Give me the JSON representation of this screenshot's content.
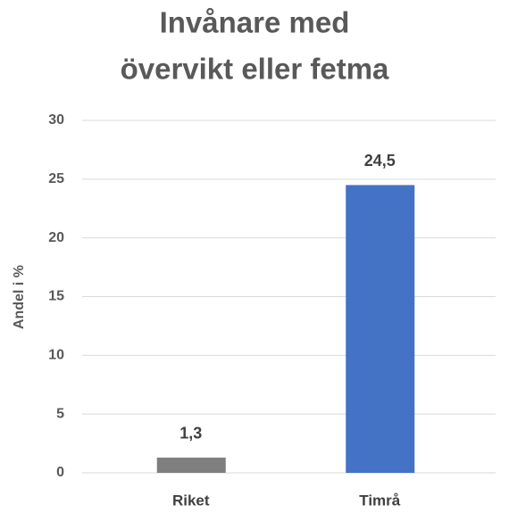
{
  "chart_data": {
    "type": "bar",
    "title": [
      "Invånare med",
      "övervikt eller fetma"
    ],
    "y_label": "Andel i %",
    "categories": [
      "Riket",
      "Timrå"
    ],
    "values": [
      1.3,
      24.5
    ],
    "value_labels": [
      "1,3",
      "24,5"
    ],
    "colors": [
      "#7f7f7f",
      "#4472c4"
    ],
    "ylim": [
      0,
      30
    ],
    "yticks": [
      0,
      5,
      10,
      15,
      20,
      25,
      30
    ],
    "grid": true
  }
}
